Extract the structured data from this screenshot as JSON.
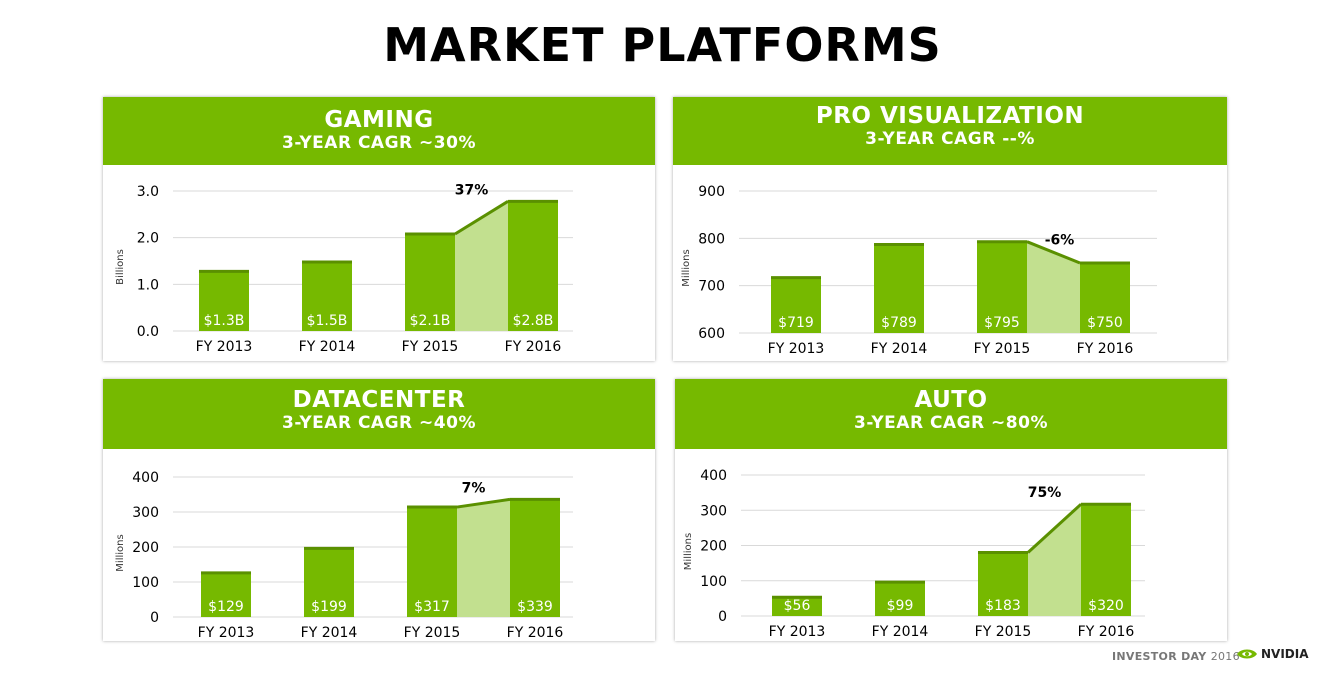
{
  "page": {
    "title": "MARKET PLATFORMS"
  },
  "footer": {
    "event": "INVESTOR DAY",
    "year": "2016",
    "brand": "NVIDIA"
  },
  "colors": {
    "bar": "#76b900",
    "growth": "#c2e08f",
    "grid": "#d9d9d9",
    "axis_text": "#000000"
  },
  "chart_data": [
    {
      "type": "bar",
      "title": "GAMING",
      "subtitle": "3-YEAR CAGR ~30%",
      "categories": [
        "FY 2013",
        "FY 2014",
        "FY 2015",
        "FY 2016"
      ],
      "values": [
        1.3,
        1.5,
        2.1,
        2.8
      ],
      "labels": [
        "$1.3B",
        "$1.5B",
        "$2.1B",
        "$2.8B"
      ],
      "ylabel": "Billions",
      "ylim": [
        0,
        3.0
      ],
      "yticks": [
        "0.0",
        "1.0",
        "2.0",
        "3.0"
      ],
      "growth_label": "37%",
      "grid": true
    },
    {
      "type": "bar",
      "title": "PRO VISUALIZATION",
      "subtitle": "3-YEAR CAGR --%",
      "categories": [
        "FY 2013",
        "FY 2014",
        "FY 2015",
        "FY 2016"
      ],
      "values": [
        719,
        789,
        795,
        750
      ],
      "labels": [
        "$719",
        "$789",
        "$795",
        "$750"
      ],
      "ylabel": "Millions",
      "ylim": [
        600,
        900
      ],
      "yticks": [
        "600",
        "700",
        "800",
        "900"
      ],
      "growth_label": "-6%",
      "grid": true
    },
    {
      "type": "bar",
      "title": "DATACENTER",
      "subtitle": "3-YEAR CAGR ~40%",
      "categories": [
        "FY 2013",
        "FY 2014",
        "FY 2015",
        "FY 2016"
      ],
      "values": [
        129,
        199,
        317,
        339
      ],
      "labels": [
        "$129",
        "$199",
        "$317",
        "$339"
      ],
      "ylabel": "Millions",
      "ylim": [
        0,
        400
      ],
      "yticks": [
        "0",
        "100",
        "200",
        "300",
        "400"
      ],
      "growth_label": "7%",
      "grid": true
    },
    {
      "type": "bar",
      "title": "AUTO",
      "subtitle": "3-YEAR CAGR ~80%",
      "categories": [
        "FY 2013",
        "FY 2014",
        "FY 2015",
        "FY 2016"
      ],
      "values": [
        56,
        99,
        183,
        320
      ],
      "labels": [
        "$56",
        "$99",
        "$183",
        "$320"
      ],
      "ylabel": "Millions",
      "ylim": [
        0,
        400
      ],
      "yticks": [
        "0",
        "100",
        "200",
        "300",
        "400"
      ],
      "growth_label": "75%",
      "grid": true
    }
  ]
}
